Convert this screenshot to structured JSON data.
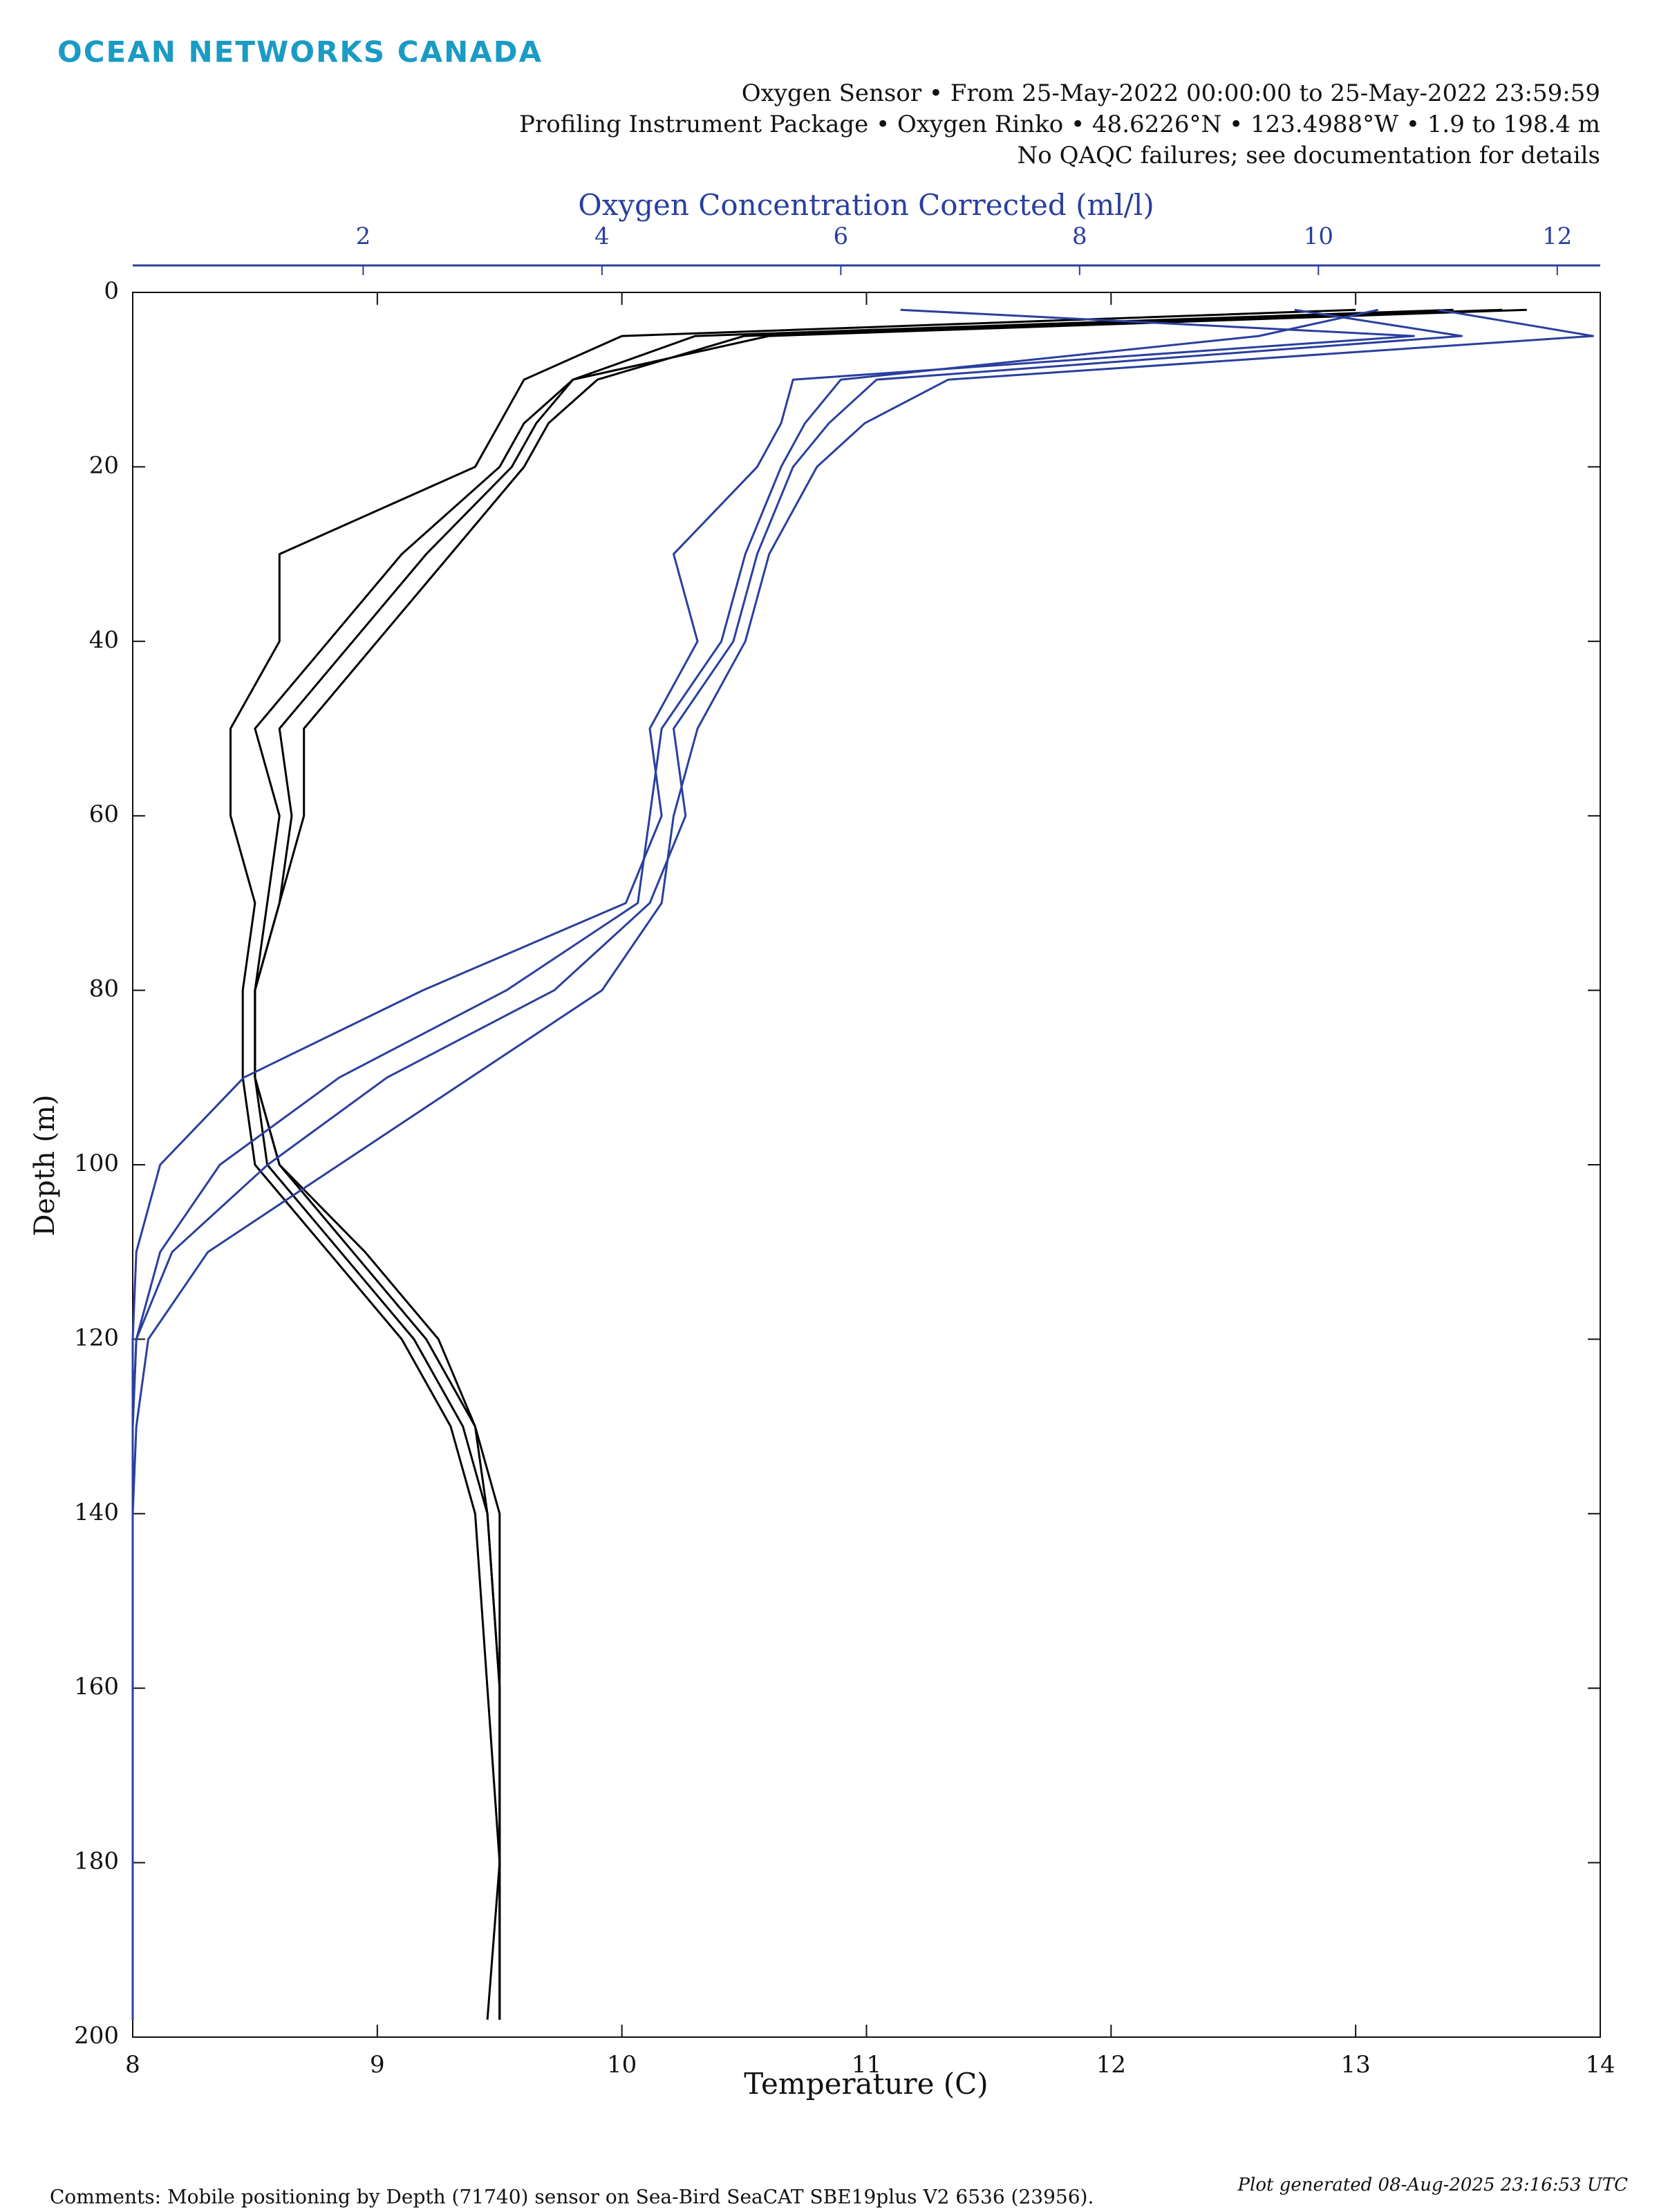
{
  "brand": "OCEAN NETWORKS CANADA",
  "chart_data": {
    "type": "profile",
    "subtitle": [
      "Oxygen Sensor • From 25-May-2022 00:00:00 to 25-May-2022 23:59:59",
      "Profiling Instrument Package • Oxygen Rinko • 48.6226°N • 123.4988°W • 1.9 to 198.4 m",
      "No QAQC failures; see documentation for details"
    ],
    "xlabel": "Temperature (C)",
    "x2label": "Oxygen Concentration Corrected (ml/l)",
    "ylabel": "Depth (m)",
    "y": [
      2,
      5,
      10,
      15,
      20,
      30,
      40,
      50,
      60,
      70,
      80,
      90,
      100,
      110,
      120,
      130,
      140,
      160,
      180,
      198
    ],
    "ylim": [
      0,
      200
    ],
    "yticks": [
      0,
      20,
      40,
      60,
      80,
      100,
      120,
      140,
      160,
      180,
      200
    ],
    "yreversed": true,
    "xlim": [
      8,
      14
    ],
    "xticks": [
      8,
      9,
      10,
      11,
      12,
      13,
      14
    ],
    "x2lim": [
      0.07,
      12.36
    ],
    "x2ticks": [
      2,
      4,
      6,
      8,
      10,
      12
    ],
    "x2color": "#2a3f9e",
    "series": [
      {
        "color": "#000000",
        "values": [
          13.6,
          10.5,
          9.9,
          9.7,
          9.6,
          9.3,
          9.0,
          8.7,
          8.7,
          8.6,
          8.5,
          8.5,
          8.6,
          8.9,
          9.2,
          9.4,
          9.45,
          9.5,
          9.5,
          9.5
        ]
      },
      {
        "color": "#000000",
        "values": [
          13.0,
          10.0,
          9.6,
          9.5,
          9.4,
          8.6,
          8.6,
          8.4,
          8.4,
          8.5,
          8.45,
          8.45,
          8.5,
          8.8,
          9.1,
          9.3,
          9.4,
          9.45,
          9.5,
          9.45
        ]
      },
      {
        "color": "#000000",
        "values": [
          13.4,
          10.3,
          9.8,
          9.6,
          9.5,
          9.1,
          8.8,
          8.5,
          8.6,
          8.55,
          8.5,
          8.5,
          8.55,
          8.85,
          9.15,
          9.35,
          9.45,
          9.5,
          9.5,
          9.5
        ]
      },
      {
        "color": "#000000",
        "values": [
          13.7,
          10.6,
          9.8,
          9.65,
          9.55,
          9.2,
          8.9,
          8.6,
          8.65,
          8.6,
          8.5,
          8.5,
          8.6,
          8.95,
          9.25,
          9.4,
          9.5,
          9.5,
          9.5,
          9.5
        ]
      },
      {
        "color": "#2a3f9e",
        "axis": "x2",
        "values": [
          11.0,
          12.3,
          6.9,
          6.2,
          5.8,
          5.4,
          5.2,
          4.8,
          4.6,
          4.5,
          4.0,
          2.9,
          1.8,
          0.7,
          0.2,
          0.1,
          0.07,
          0.07,
          0.07,
          0.07
        ]
      },
      {
        "color": "#2a3f9e",
        "axis": "x2",
        "values": [
          10.5,
          9.5,
          6.0,
          5.7,
          5.5,
          5.2,
          5.0,
          4.5,
          4.4,
          4.3,
          3.2,
          1.8,
          0.8,
          0.3,
          0.1,
          0.07,
          0.07,
          0.07,
          0.07,
          0.07
        ]
      },
      {
        "color": "#2a3f9e",
        "axis": "x2",
        "values": [
          6.5,
          10.8,
          5.6,
          5.5,
          5.3,
          4.6,
          4.8,
          4.4,
          4.5,
          4.2,
          2.5,
          1.0,
          0.3,
          0.1,
          0.07,
          0.07,
          0.07,
          0.07,
          0.07,
          0.07
        ]
      },
      {
        "color": "#2a3f9e",
        "axis": "x2",
        "values": [
          9.8,
          11.2,
          6.3,
          5.9,
          5.6,
          5.3,
          5.1,
          4.6,
          4.7,
          4.4,
          3.6,
          2.2,
          1.2,
          0.4,
          0.1,
          0.07,
          0.07,
          0.07,
          0.07,
          0.07
        ]
      }
    ],
    "footnote": "Comments: Mobile positioning by Depth (71740) sensor on Sea-Bird SeaCAT SBE19plus V2 6536 (23956).",
    "timestamp": "Plot generated 08-Aug-2025 23:16:53 UTC"
  }
}
